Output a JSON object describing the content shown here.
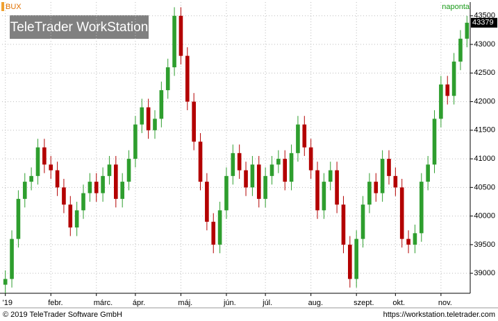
{
  "chart_data": {
    "type": "candlestick",
    "title": "BUX",
    "interval": "naponta",
    "watermark": "TeleTrader WorkStation",
    "footer_left": "© 2019 TeleTrader Software GmbH",
    "footer_right": "https://workstation.teletrader.com",
    "up_color": "#2e9e2e",
    "down_color": "#b30000",
    "grid": true,
    "ylim": [
      38650,
      43740
    ],
    "yticks": [
      39000,
      39500,
      40000,
      40500,
      41000,
      41500,
      42000,
      42500,
      43000,
      43500
    ],
    "categories": [
      "'19",
      null,
      null,
      null,
      null,
      null,
      null,
      "febr.",
      null,
      null,
      null,
      null,
      null,
      null,
      "márc.",
      null,
      null,
      null,
      null,
      null,
      "ápr.",
      null,
      null,
      null,
      null,
      null,
      null,
      "máj.",
      null,
      null,
      null,
      null,
      null,
      null,
      "jún.",
      null,
      null,
      null,
      null,
      null,
      "júl.",
      null,
      null,
      null,
      null,
      null,
      null,
      "aug.",
      null,
      null,
      null,
      null,
      null,
      null,
      "szept.",
      null,
      null,
      null,
      null,
      null,
      "okt.",
      null,
      null,
      null,
      null,
      null,
      null,
      "nov.",
      null,
      null,
      null,
      null
    ],
    "open": [
      38800,
      38900,
      39600,
      40300,
      40600,
      40700,
      41200,
      40900,
      40800,
      40500,
      40200,
      39800,
      40100,
      40400,
      40600,
      40400,
      40700,
      40900,
      40300,
      40600,
      41000,
      41600,
      41900,
      41500,
      41700,
      42200,
      42600,
      43500,
      42800,
      42000,
      41300,
      40600,
      39900,
      39500,
      40100,
      40700,
      41100,
      40800,
      40500,
      40900,
      40300,
      40700,
      40900,
      41000,
      40600,
      41100,
      41600,
      41200,
      40800,
      40100,
      40600,
      40800,
      40200,
      39500,
      38900,
      39600,
      40200,
      40600,
      40400,
      41000,
      40700,
      40500,
      39600,
      39500,
      39700,
      40600,
      40900,
      41700,
      42300,
      42100,
      42700,
      43100
    ],
    "high": [
      39050,
      39750,
      40450,
      40750,
      40850,
      41350,
      41350,
      41050,
      40950,
      40650,
      40350,
      40250,
      40550,
      40750,
      40750,
      40850,
      41050,
      41050,
      40750,
      41150,
      41750,
      42050,
      42050,
      41850,
      42350,
      42750,
      43650,
      43650,
      42950,
      42150,
      41450,
      40750,
      40050,
      40250,
      40850,
      41250,
      41250,
      40950,
      41050,
      41050,
      40850,
      41050,
      41150,
      41150,
      41250,
      41750,
      41750,
      41350,
      40950,
      40750,
      40950,
      40950,
      40350,
      39650,
      39750,
      40350,
      40750,
      40750,
      41150,
      41150,
      40850,
      40650,
      39750,
      39850,
      40750,
      41050,
      41850,
      42450,
      42450,
      42850,
      43250,
      43500
    ],
    "low": [
      38650,
      38750,
      39450,
      40150,
      40450,
      40550,
      40750,
      40650,
      40350,
      40050,
      39650,
      39650,
      39950,
      40250,
      40250,
      40250,
      40550,
      40150,
      40150,
      40450,
      40850,
      41450,
      41350,
      41350,
      41550,
      42050,
      42450,
      42650,
      41850,
      41150,
      40450,
      39750,
      39350,
      39350,
      39950,
      40550,
      40650,
      40350,
      40350,
      40150,
      40150,
      40550,
      40750,
      40450,
      40450,
      40950,
      41050,
      40650,
      39950,
      39950,
      40450,
      40050,
      39350,
      38750,
      38750,
      39450,
      40050,
      40250,
      40250,
      40550,
      40350,
      39450,
      39350,
      39350,
      39550,
      40450,
      40750,
      41550,
      41950,
      41950,
      42550,
      42950
    ],
    "close": [
      38900,
      39600,
      40300,
      40600,
      40700,
      41200,
      40900,
      40800,
      40500,
      40200,
      39800,
      40100,
      40400,
      40600,
      40400,
      40700,
      40900,
      40300,
      40600,
      41000,
      41600,
      41900,
      41500,
      41700,
      42200,
      42600,
      43500,
      42800,
      42000,
      41300,
      40600,
      39900,
      39500,
      40100,
      40700,
      41100,
      40800,
      40500,
      40900,
      40300,
      40700,
      40900,
      41000,
      40600,
      41100,
      41600,
      41200,
      40800,
      40100,
      40600,
      40800,
      40200,
      39500,
      38900,
      39600,
      40200,
      40600,
      40400,
      41000,
      40700,
      40500,
      39600,
      39500,
      39700,
      40600,
      40900,
      41700,
      42300,
      42100,
      42700,
      43100,
      43379
    ]
  }
}
